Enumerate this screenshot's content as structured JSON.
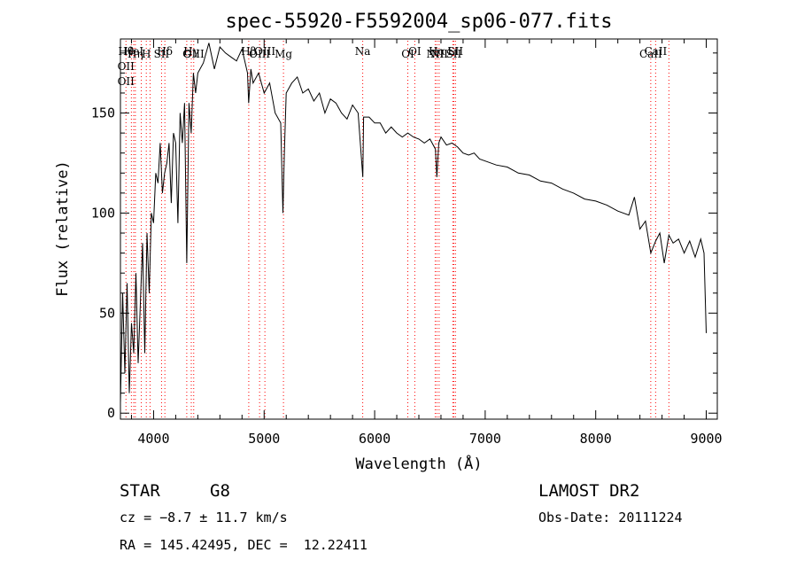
{
  "chart_data": {
    "type": "line",
    "title": "spec-55920-F5592004_sp06-077.fits",
    "xlabel": "Wavelength (Å)",
    "ylabel": "Flux (relative)",
    "xlim": [
      3700,
      9100
    ],
    "ylim": [
      -3,
      187
    ],
    "xticks": [
      4000,
      5000,
      6000,
      7000,
      8000,
      9000
    ],
    "yticks": [
      0,
      50,
      100,
      150
    ],
    "grid": false,
    "line_color": "#000000",
    "marker_color": "#ff0000",
    "series": [
      {
        "x": [
          3700,
          3720,
          3740,
          3760,
          3780,
          3800,
          3820,
          3840,
          3860,
          3880,
          3900,
          3920,
          3940,
          3960,
          3980,
          4000,
          4020,
          4040,
          4060,
          4080,
          4100,
          4120,
          4140,
          4160,
          4180,
          4200,
          4220,
          4240,
          4260,
          4280,
          4300,
          4320,
          4340,
          4360,
          4380,
          4400,
          4450,
          4500,
          4550,
          4600,
          4650,
          4700,
          4750,
          4800,
          4850,
          4860,
          4880,
          4900,
          4950,
          5000,
          5050,
          5100,
          5150,
          5170,
          5183,
          5200,
          5250,
          5300,
          5350,
          5400,
          5450,
          5500,
          5550,
          5600,
          5650,
          5700,
          5750,
          5800,
          5850,
          5893,
          5900,
          5950,
          6000,
          6050,
          6100,
          6150,
          6200,
          6250,
          6300,
          6350,
          6400,
          6450,
          6500,
          6550,
          6563,
          6580,
          6600,
          6650,
          6700,
          6750,
          6800,
          6850,
          6900,
          6950,
          7000,
          7100,
          7200,
          7300,
          7400,
          7500,
          7600,
          7700,
          7800,
          7900,
          8000,
          8100,
          8200,
          8300,
          8350,
          8400,
          8450,
          8498,
          8542,
          8580,
          8620,
          8662,
          8700,
          8750,
          8800,
          8850,
          8900,
          8950,
          8980,
          9000
        ],
        "y": [
          5,
          60,
          20,
          65,
          10,
          45,
          30,
          70,
          25,
          55,
          85,
          30,
          90,
          60,
          100,
          95,
          120,
          115,
          135,
          110,
          120,
          125,
          135,
          105,
          140,
          135,
          95,
          150,
          135,
          155,
          75,
          155,
          140,
          170,
          160,
          170,
          175,
          185,
          172,
          183,
          180,
          178,
          176,
          182,
          170,
          155,
          172,
          165,
          170,
          160,
          165,
          150,
          145,
          100,
          130,
          160,
          165,
          168,
          160,
          162,
          156,
          160,
          150,
          157,
          155,
          150,
          147,
          154,
          150,
          118,
          148,
          148,
          145,
          145,
          140,
          143,
          140,
          138,
          140,
          138,
          137,
          135,
          137,
          132,
          118,
          135,
          138,
          134,
          135,
          133,
          130,
          129,
          130,
          127,
          126,
          124,
          123,
          120,
          119,
          116,
          115,
          112,
          110,
          107,
          106,
          104,
          101,
          99,
          108,
          92,
          96,
          80,
          86,
          90,
          75,
          89,
          85,
          87,
          80,
          86,
          78,
          87,
          80,
          40
        ]
      }
    ],
    "line_markers": [
      {
        "x": 3750,
        "labels": [
          "Hθ",
          "OII",
          "OII"
        ]
      },
      {
        "x": 3799,
        "labels": []
      },
      {
        "x": 3820,
        "labels": [
          "HeI"
        ]
      },
      {
        "x": 3835,
        "labels": [
          "Hη"
        ]
      },
      {
        "x": 3889,
        "labels": []
      },
      {
        "x": 3934,
        "labels": [
          "H"
        ]
      },
      {
        "x": 3968,
        "labels": []
      },
      {
        "x": 4072,
        "labels": [
          "SII"
        ]
      },
      {
        "x": 4102,
        "labels": [
          "Hδ"
        ]
      },
      {
        "x": 4300,
        "labels": [
          "G"
        ]
      },
      {
        "x": 4341,
        "labels": [
          "Hγ"
        ]
      },
      {
        "x": 4363,
        "labels": [
          "OIII"
        ]
      },
      {
        "x": 4861,
        "labels": [
          "Hβ"
        ]
      },
      {
        "x": 4959,
        "labels": [
          "OIII"
        ]
      },
      {
        "x": 5007,
        "labels": [
          "OIII"
        ]
      },
      {
        "x": 5175,
        "labels": [
          "Mg"
        ]
      },
      {
        "x": 5892,
        "labels": [
          "Na"
        ]
      },
      {
        "x": 6300,
        "labels": [
          "OI"
        ]
      },
      {
        "x": 6363,
        "labels": [
          "OI"
        ]
      },
      {
        "x": 6548,
        "labels": [
          "NII"
        ]
      },
      {
        "x": 6563,
        "labels": [
          "Hα"
        ]
      },
      {
        "x": 6583,
        "labels": [
          "NII"
        ]
      },
      {
        "x": 6707,
        "labels": [
          "Li"
        ]
      },
      {
        "x": 6716,
        "labels": [
          "SII"
        ]
      },
      {
        "x": 6731,
        "labels": [
          "SII"
        ]
      },
      {
        "x": 8498,
        "labels": [
          "CaII"
        ]
      },
      {
        "x": 8542,
        "labels": [
          "CaII"
        ]
      },
      {
        "x": 8662,
        "labels": []
      }
    ]
  },
  "footer": {
    "object_class": "STAR",
    "subclass": "G8",
    "survey": "LAMOST DR2",
    "cz": "cz = −8.7 ± 11.7 km/s",
    "obs_date": "Obs-Date: 20111224",
    "coords": "RA = 145.42495, DEC =  12.22411"
  }
}
